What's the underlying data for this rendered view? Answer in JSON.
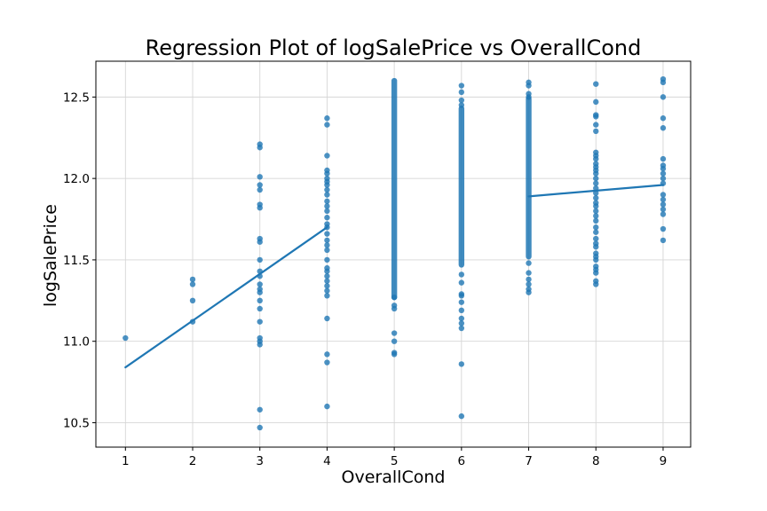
{
  "chart_data": {
    "type": "scatter",
    "title": "Regression Plot of logSalePrice vs OverallCond",
    "xlabel": "OverallCond",
    "ylabel": "logSalePrice",
    "xlim": [
      0.56,
      9.41
    ],
    "ylim": [
      10.35,
      12.72
    ],
    "xticks": [
      1,
      2,
      3,
      4,
      5,
      6,
      7,
      8,
      9
    ],
    "yticks": [
      10.5,
      11.0,
      11.5,
      12.0,
      12.5
    ],
    "ytick_labels": [
      "10.5",
      "11.0",
      "11.5",
      "12.0",
      "12.5"
    ],
    "grid": true,
    "color": "#1f77b4",
    "series": [
      {
        "points": [
          [
            1,
            11.02
          ],
          [
            2,
            11.38
          ],
          [
            2,
            11.35
          ],
          [
            2,
            11.25
          ],
          [
            2,
            11.12
          ],
          [
            3,
            12.21
          ],
          [
            3,
            12.19
          ],
          [
            3,
            12.01
          ],
          [
            3,
            11.96
          ],
          [
            3,
            11.93
          ],
          [
            3,
            11.84
          ],
          [
            3,
            11.82
          ],
          [
            3,
            11.63
          ],
          [
            3,
            11.61
          ],
          [
            3,
            11.5
          ],
          [
            3,
            11.43
          ],
          [
            3,
            11.4
          ],
          [
            3,
            11.35
          ],
          [
            3,
            11.32
          ],
          [
            3,
            11.3
          ],
          [
            3,
            11.25
          ],
          [
            3,
            11.2
          ],
          [
            3,
            11.12
          ],
          [
            3,
            11.02
          ],
          [
            3,
            11.0
          ],
          [
            3,
            10.98
          ],
          [
            3,
            10.58
          ],
          [
            3,
            10.47
          ],
          [
            4,
            12.37
          ],
          [
            4,
            12.33
          ],
          [
            4,
            12.14
          ],
          [
            4,
            12.05
          ],
          [
            4,
            12.03
          ],
          [
            4,
            12.0
          ],
          [
            4,
            11.98
          ],
          [
            4,
            11.96
          ],
          [
            4,
            11.93
          ],
          [
            4,
            11.9
          ],
          [
            4,
            11.86
          ],
          [
            4,
            11.83
          ],
          [
            4,
            11.8
          ],
          [
            4,
            11.76
          ],
          [
            4,
            11.72
          ],
          [
            4,
            11.7
          ],
          [
            4,
            11.66
          ],
          [
            4,
            11.62
          ],
          [
            4,
            11.59
          ],
          [
            4,
            11.56
          ],
          [
            4,
            11.5
          ],
          [
            4,
            11.45
          ],
          [
            4,
            11.43
          ],
          [
            4,
            11.4
          ],
          [
            4,
            11.37
          ],
          [
            4,
            11.34
          ],
          [
            4,
            11.31
          ],
          [
            4,
            11.28
          ],
          [
            4,
            11.14
          ],
          [
            4,
            10.92
          ],
          [
            4,
            10.87
          ],
          [
            4,
            10.6
          ],
          [
            5,
            11.27
          ],
          [
            5,
            11.22
          ],
          [
            5,
            11.2
          ],
          [
            5,
            11.05
          ],
          [
            5,
            11.0
          ],
          [
            5,
            10.93
          ],
          [
            5,
            10.92
          ],
          [
            6,
            11.41
          ],
          [
            6,
            11.36
          ],
          [
            6,
            11.29
          ],
          [
            6,
            11.28
          ],
          [
            6,
            11.24
          ],
          [
            6,
            11.19
          ],
          [
            6,
            11.14
          ],
          [
            6,
            11.11
          ],
          [
            6,
            11.08
          ],
          [
            6,
            10.86
          ],
          [
            6,
            10.54
          ],
          [
            6,
            12.57
          ],
          [
            6,
            12.53
          ],
          [
            6,
            12.48
          ],
          [
            6,
            12.45
          ],
          [
            7,
            12.59
          ],
          [
            7,
            12.57
          ],
          [
            7,
            12.52
          ],
          [
            7,
            12.5
          ],
          [
            7,
            11.48
          ],
          [
            7,
            11.42
          ],
          [
            7,
            11.38
          ],
          [
            7,
            11.35
          ],
          [
            7,
            11.32
          ],
          [
            7,
            11.3
          ],
          [
            8,
            12.58
          ],
          [
            8,
            12.47
          ],
          [
            8,
            12.39
          ],
          [
            8,
            12.38
          ],
          [
            8,
            12.33
          ],
          [
            8,
            12.29
          ],
          [
            8,
            12.16
          ],
          [
            8,
            12.14
          ],
          [
            8,
            12.12
          ],
          [
            8,
            12.09
          ],
          [
            8,
            12.07
          ],
          [
            8,
            12.05
          ],
          [
            8,
            12.03
          ],
          [
            8,
            12.0
          ],
          [
            8,
            11.97
          ],
          [
            8,
            11.94
          ],
          [
            8,
            11.91
          ],
          [
            8,
            11.88
          ],
          [
            8,
            11.85
          ],
          [
            8,
            11.83
          ],
          [
            8,
            11.8
          ],
          [
            8,
            11.77
          ],
          [
            8,
            11.74
          ],
          [
            8,
            11.7
          ],
          [
            8,
            11.67
          ],
          [
            8,
            11.63
          ],
          [
            8,
            11.6
          ],
          [
            8,
            11.58
          ],
          [
            8,
            11.54
          ],
          [
            8,
            11.52
          ],
          [
            8,
            11.5
          ],
          [
            8,
            11.46
          ],
          [
            8,
            11.44
          ],
          [
            8,
            11.42
          ],
          [
            8,
            11.37
          ],
          [
            8,
            11.35
          ],
          [
            9,
            12.61
          ],
          [
            9,
            12.59
          ],
          [
            9,
            12.5
          ],
          [
            9,
            12.37
          ],
          [
            9,
            12.31
          ],
          [
            9,
            12.12
          ],
          [
            9,
            12.08
          ],
          [
            9,
            12.06
          ],
          [
            9,
            12.03
          ],
          [
            9,
            12.0
          ],
          [
            9,
            11.97
          ],
          [
            9,
            11.9
          ],
          [
            9,
            11.87
          ],
          [
            9,
            11.84
          ],
          [
            9,
            11.81
          ],
          [
            9,
            11.78
          ],
          [
            9,
            11.69
          ],
          [
            9,
            11.62
          ]
        ],
        "dense_columns": [
          {
            "x": 5,
            "y_min": 11.27,
            "y_max": 12.6
          },
          {
            "x": 6,
            "y_min": 11.47,
            "y_max": 12.43
          },
          {
            "x": 7,
            "y_min": 11.52,
            "y_max": 12.49
          }
        ]
      }
    ],
    "regression_segments": [
      {
        "x": [
          1,
          4
        ],
        "y": [
          10.84,
          11.7
        ]
      },
      {
        "x": [
          7,
          9
        ],
        "y": [
          11.89,
          11.96
        ]
      }
    ]
  }
}
